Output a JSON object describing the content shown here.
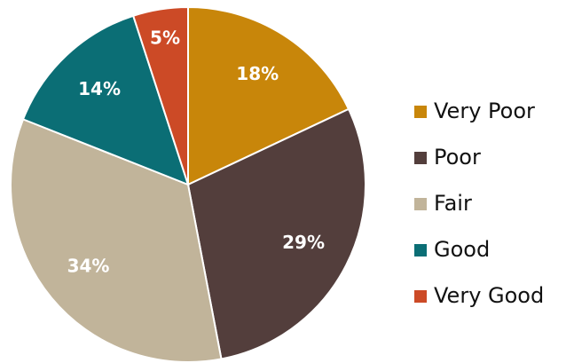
{
  "chart_data": {
    "type": "pie",
    "categories": [
      "Very Poor",
      "Poor",
      "Fair",
      "Good",
      "Very Good"
    ],
    "values": [
      18,
      29,
      34,
      14,
      5
    ],
    "value_labels": [
      "18%",
      "29%",
      "34%",
      "14%",
      "5%"
    ],
    "colors": [
      "#c8860a",
      "#533e3c",
      "#c1b49a",
      "#0b6e75",
      "#cc4a26"
    ],
    "legend": "right"
  }
}
